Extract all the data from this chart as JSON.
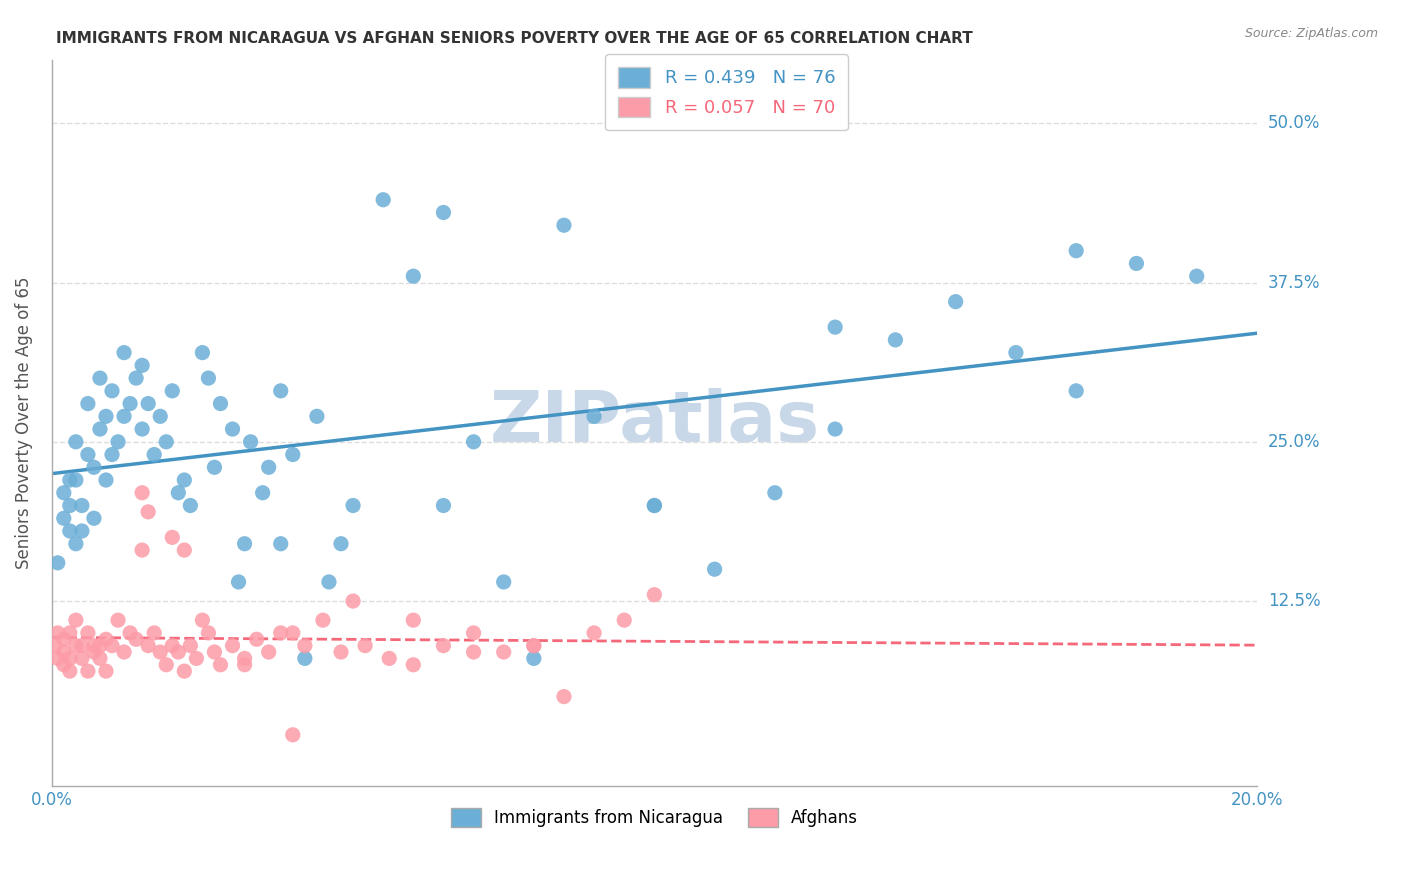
{
  "title": "IMMIGRANTS FROM NICARAGUA VS AFGHAN SENIORS POVERTY OVER THE AGE OF 65 CORRELATION CHART",
  "source": "Source: ZipAtlas.com",
  "ylabel": "Seniors Poverty Over the Age of 65",
  "xlabel": "",
  "xlim": [
    0.0,
    0.2
  ],
  "ylim": [
    -0.02,
    0.55
  ],
  "yticks": [
    0.125,
    0.25,
    0.375,
    0.5
  ],
  "ytick_labels": [
    "12.5%",
    "25.0%",
    "37.5%",
    "50.0%"
  ],
  "xticks": [
    0.0,
    0.05,
    0.1,
    0.15,
    0.2
  ],
  "xtick_labels": [
    "0.0%",
    "",
    "",
    "",
    "20.0%"
  ],
  "nicaragua_R": 0.439,
  "nicaragua_N": 76,
  "afghan_R": 0.057,
  "afghan_N": 70,
  "nicaragua_color": "#6baed6",
  "afghan_color": "#fc9ca8",
  "nicaragua_line_color": "#4393c3",
  "afghan_line_color": "#f4687a",
  "watermark": "ZIPatlas",
  "watermark_color": "#c8d8e8",
  "background_color": "#ffffff",
  "grid_color": "#dddddd",
  "title_color": "#333333",
  "axis_label_color": "#4393c3",
  "legend_label1": "Immigrants from Nicaragua",
  "legend_label2": "Afghans",
  "nicaragua_x": [
    0.001,
    0.002,
    0.002,
    0.003,
    0.003,
    0.003,
    0.004,
    0.004,
    0.004,
    0.005,
    0.005,
    0.006,
    0.006,
    0.007,
    0.007,
    0.008,
    0.008,
    0.009,
    0.009,
    0.01,
    0.01,
    0.011,
    0.012,
    0.012,
    0.013,
    0.014,
    0.015,
    0.015,
    0.016,
    0.017,
    0.018,
    0.019,
    0.02,
    0.021,
    0.022,
    0.023,
    0.025,
    0.026,
    0.027,
    0.028,
    0.03,
    0.031,
    0.032,
    0.033,
    0.035,
    0.036,
    0.038,
    0.04,
    0.042,
    0.044,
    0.046,
    0.048,
    0.05,
    0.055,
    0.06,
    0.065,
    0.07,
    0.075,
    0.08,
    0.09,
    0.1,
    0.11,
    0.12,
    0.13,
    0.14,
    0.15,
    0.16,
    0.17,
    0.18,
    0.19,
    0.038,
    0.065,
    0.085,
    0.1,
    0.13,
    0.17
  ],
  "nicaragua_y": [
    0.155,
    0.19,
    0.21,
    0.18,
    0.2,
    0.22,
    0.17,
    0.22,
    0.25,
    0.18,
    0.2,
    0.24,
    0.28,
    0.19,
    0.23,
    0.26,
    0.3,
    0.22,
    0.27,
    0.24,
    0.29,
    0.25,
    0.27,
    0.32,
    0.28,
    0.3,
    0.26,
    0.31,
    0.28,
    0.24,
    0.27,
    0.25,
    0.29,
    0.21,
    0.22,
    0.2,
    0.32,
    0.3,
    0.23,
    0.28,
    0.26,
    0.14,
    0.17,
    0.25,
    0.21,
    0.23,
    0.29,
    0.24,
    0.08,
    0.27,
    0.14,
    0.17,
    0.2,
    0.44,
    0.38,
    0.2,
    0.25,
    0.14,
    0.08,
    0.27,
    0.2,
    0.15,
    0.21,
    0.26,
    0.33,
    0.36,
    0.32,
    0.29,
    0.39,
    0.38,
    0.17,
    0.43,
    0.42,
    0.2,
    0.34,
    0.4
  ],
  "afghan_x": [
    0.0005,
    0.001,
    0.001,
    0.002,
    0.002,
    0.002,
    0.003,
    0.003,
    0.003,
    0.004,
    0.004,
    0.005,
    0.005,
    0.006,
    0.006,
    0.007,
    0.007,
    0.008,
    0.008,
    0.009,
    0.009,
    0.01,
    0.011,
    0.012,
    0.013,
    0.014,
    0.015,
    0.016,
    0.017,
    0.018,
    0.019,
    0.02,
    0.021,
    0.022,
    0.023,
    0.024,
    0.025,
    0.026,
    0.027,
    0.028,
    0.03,
    0.032,
    0.034,
    0.036,
    0.038,
    0.04,
    0.042,
    0.045,
    0.048,
    0.052,
    0.056,
    0.06,
    0.065,
    0.07,
    0.075,
    0.08,
    0.085,
    0.09,
    0.095,
    0.1,
    0.015,
    0.022,
    0.032,
    0.04,
    0.05,
    0.06,
    0.07,
    0.08,
    0.02,
    0.016
  ],
  "afghan_y": [
    0.09,
    0.1,
    0.08,
    0.085,
    0.095,
    0.075,
    0.08,
    0.1,
    0.07,
    0.09,
    0.11,
    0.08,
    0.09,
    0.07,
    0.1,
    0.09,
    0.085,
    0.08,
    0.09,
    0.07,
    0.095,
    0.09,
    0.11,
    0.085,
    0.1,
    0.095,
    0.21,
    0.09,
    0.1,
    0.085,
    0.075,
    0.09,
    0.085,
    0.07,
    0.09,
    0.08,
    0.11,
    0.1,
    0.085,
    0.075,
    0.09,
    0.08,
    0.095,
    0.085,
    0.1,
    0.02,
    0.09,
    0.11,
    0.085,
    0.09,
    0.08,
    0.075,
    0.09,
    0.1,
    0.085,
    0.09,
    0.05,
    0.1,
    0.11,
    0.13,
    0.165,
    0.165,
    0.075,
    0.1,
    0.125,
    0.11,
    0.085,
    0.09,
    0.175,
    0.195
  ]
}
